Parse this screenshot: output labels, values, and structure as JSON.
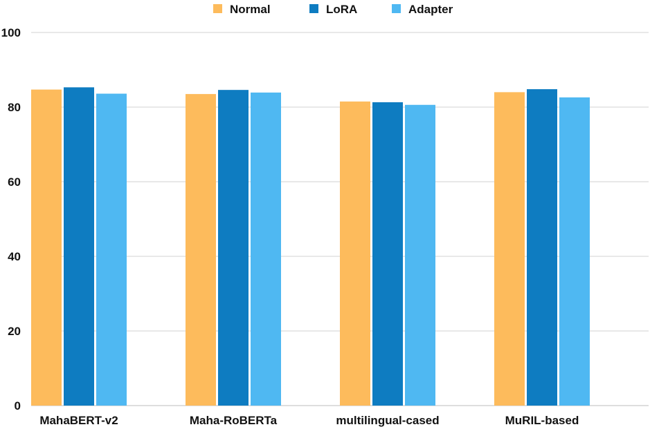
{
  "chart_data": {
    "type": "bar",
    "title": "",
    "xlabel": "",
    "ylabel": "",
    "categories": [
      "MahaBERT-v2",
      "Maha-RoBERTa",
      "multilingual-cased",
      "MuRIL-based"
    ],
    "series": [
      {
        "name": "Normal",
        "color": "#FDBB5C",
        "values": [
          84.7,
          83.5,
          81.5,
          84.0
        ]
      },
      {
        "name": "LoRA",
        "color": "#0E7CC1",
        "values": [
          85.3,
          84.6,
          81.3,
          84.8
        ]
      },
      {
        "name": "Adapter",
        "color": "#4FB8F2",
        "values": [
          83.6,
          83.9,
          80.6,
          82.6
        ]
      }
    ],
    "ylim": [
      0,
      100
    ],
    "yticks": [
      0,
      20,
      40,
      60,
      80,
      100
    ],
    "grid": true,
    "legend_position": "top"
  }
}
